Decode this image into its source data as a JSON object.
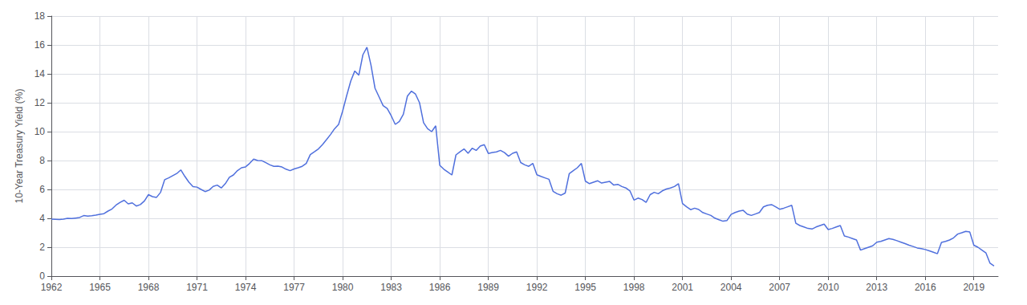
{
  "chart_data": {
    "type": "line",
    "ylabel": "10-Year Treasury Yield (%)",
    "x": [
      1962,
      1962.25,
      1962.5,
      1962.75,
      1963,
      1963.25,
      1963.5,
      1963.75,
      1964,
      1964.25,
      1964.5,
      1964.75,
      1965,
      1965.25,
      1965.5,
      1965.75,
      1966,
      1966.25,
      1966.5,
      1966.75,
      1967,
      1967.25,
      1967.5,
      1967.75,
      1968,
      1968.25,
      1968.5,
      1968.75,
      1969,
      1969.25,
      1969.5,
      1969.75,
      1970,
      1970.25,
      1970.5,
      1970.75,
      1971,
      1971.25,
      1971.5,
      1971.75,
      1972,
      1972.25,
      1972.5,
      1972.75,
      1973,
      1973.25,
      1973.5,
      1973.75,
      1974,
      1974.25,
      1974.5,
      1974.75,
      1975,
      1975.25,
      1975.5,
      1975.75,
      1976,
      1976.25,
      1976.5,
      1976.75,
      1977,
      1977.25,
      1977.5,
      1977.75,
      1978,
      1978.25,
      1978.5,
      1978.75,
      1979,
      1979.25,
      1979.5,
      1979.75,
      1980,
      1980.25,
      1980.5,
      1980.75,
      1981,
      1981.25,
      1981.5,
      1981.75,
      1982,
      1982.25,
      1982.5,
      1982.75,
      1983,
      1983.25,
      1983.5,
      1983.75,
      1984,
      1984.25,
      1984.5,
      1984.75,
      1985,
      1985.25,
      1985.5,
      1985.75,
      1986,
      1986.25,
      1986.5,
      1986.75,
      1987,
      1987.25,
      1987.5,
      1987.75,
      1988,
      1988.25,
      1988.5,
      1988.75,
      1989,
      1989.25,
      1989.5,
      1989.75,
      1990,
      1990.25,
      1990.5,
      1990.75,
      1991,
      1991.25,
      1991.5,
      1991.75,
      1992,
      1992.25,
      1992.5,
      1992.75,
      1993,
      1993.25,
      1993.5,
      1993.75,
      1994,
      1994.25,
      1994.5,
      1994.75,
      1995,
      1995.25,
      1995.5,
      1995.75,
      1996,
      1996.25,
      1996.5,
      1996.75,
      1997,
      1997.25,
      1997.5,
      1997.75,
      1998,
      1998.25,
      1998.5,
      1998.75,
      1999,
      1999.25,
      1999.5,
      1999.75,
      2000,
      2000.25,
      2000.5,
      2000.75,
      2001,
      2001.25,
      2001.5,
      2001.75,
      2002,
      2002.25,
      2002.5,
      2002.75,
      2003,
      2003.25,
      2003.5,
      2003.75,
      2004,
      2004.25,
      2004.5,
      2004.75,
      2005,
      2005.25,
      2005.5,
      2005.75,
      2006,
      2006.25,
      2006.5,
      2006.75,
      2007,
      2007.25,
      2007.5,
      2007.75,
      2008,
      2008.25,
      2008.5,
      2008.75,
      2009,
      2009.25,
      2009.5,
      2009.75,
      2010,
      2010.25,
      2010.5,
      2010.75,
      2011,
      2011.25,
      2011.5,
      2011.75,
      2012,
      2012.25,
      2012.5,
      2012.75,
      2013,
      2013.25,
      2013.5,
      2013.75,
      2014,
      2014.25,
      2014.5,
      2014.75,
      2015,
      2015.25,
      2015.5,
      2015.75,
      2016,
      2016.25,
      2016.5,
      2016.75,
      2017,
      2017.25,
      2017.5,
      2017.75,
      2018,
      2018.25,
      2018.5,
      2018.75,
      2019,
      2019.25,
      2019.5,
      2019.75,
      2020,
      2020.25
    ],
    "values": [
      3.95,
      3.93,
      3.91,
      3.94,
      4.0,
      3.98,
      4.02,
      4.06,
      4.19,
      4.15,
      4.18,
      4.22,
      4.28,
      4.32,
      4.5,
      4.65,
      4.92,
      5.1,
      5.25,
      5.0,
      5.07,
      4.85,
      4.95,
      5.2,
      5.64,
      5.5,
      5.45,
      5.8,
      6.67,
      6.8,
      6.95,
      7.1,
      7.35,
      6.9,
      6.5,
      6.2,
      6.16,
      6.0,
      5.85,
      5.95,
      6.21,
      6.3,
      6.1,
      6.4,
      6.84,
      7.0,
      7.3,
      7.5,
      7.56,
      7.8,
      8.1,
      8.0,
      7.99,
      7.85,
      7.7,
      7.6,
      7.61,
      7.55,
      7.4,
      7.3,
      7.42,
      7.5,
      7.6,
      7.8,
      8.41,
      8.6,
      8.8,
      9.1,
      9.44,
      9.8,
      10.2,
      10.5,
      11.43,
      12.5,
      13.5,
      14.2,
      13.91,
      15.32,
      15.84,
      14.6,
      13.0,
      12.4,
      11.8,
      11.6,
      11.1,
      10.5,
      10.7,
      11.2,
      12.46,
      12.8,
      12.6,
      12.0,
      10.62,
      10.2,
      10.0,
      10.4,
      7.67,
      7.4,
      7.2,
      7.0,
      8.39,
      8.6,
      8.8,
      8.5,
      8.85,
      8.7,
      9.0,
      9.1,
      8.49,
      8.55,
      8.6,
      8.7,
      8.55,
      8.3,
      8.5,
      8.6,
      7.86,
      7.7,
      7.6,
      7.8,
      7.01,
      6.9,
      6.8,
      6.7,
      5.87,
      5.7,
      5.6,
      5.75,
      7.09,
      7.3,
      7.5,
      7.8,
      6.57,
      6.4,
      6.5,
      6.6,
      6.44,
      6.5,
      6.55,
      6.3,
      6.35,
      6.2,
      6.1,
      5.9,
      5.26,
      5.4,
      5.3,
      5.1,
      5.64,
      5.8,
      5.7,
      5.9,
      6.03,
      6.1,
      6.2,
      6.4,
      5.02,
      4.8,
      4.6,
      4.7,
      4.61,
      4.4,
      4.3,
      4.2,
      4.01,
      3.9,
      3.8,
      3.85,
      4.27,
      4.4,
      4.5,
      4.55,
      4.29,
      4.2,
      4.3,
      4.4,
      4.79,
      4.9,
      4.95,
      4.8,
      4.63,
      4.7,
      4.8,
      4.9,
      3.66,
      3.5,
      3.4,
      3.3,
      3.26,
      3.4,
      3.5,
      3.6,
      3.22,
      3.3,
      3.4,
      3.5,
      2.78,
      2.7,
      2.6,
      2.5,
      1.8,
      1.9,
      2.0,
      2.1,
      2.35,
      2.4,
      2.5,
      2.6,
      2.54,
      2.45,
      2.35,
      2.25,
      2.14,
      2.05,
      1.95,
      1.9,
      1.84,
      1.75,
      1.65,
      1.55,
      2.33,
      2.4,
      2.5,
      2.65,
      2.91,
      3.0,
      3.1,
      3.05,
      2.14,
      2.0,
      1.8,
      1.6,
      0.89,
      0.7
    ],
    "xlim": [
      1962,
      2020.5
    ],
    "xticks": [
      1962,
      1965,
      1968,
      1971,
      1974,
      1977,
      1980,
      1983,
      1986,
      1989,
      1992,
      1995,
      1998,
      2001,
      2004,
      2007,
      2010,
      2013,
      2016,
      2019
    ],
    "ylim": [
      0,
      18
    ],
    "yticks": [
      0,
      2,
      4,
      6,
      8,
      10,
      12,
      14,
      16,
      18
    ],
    "grid": true
  }
}
